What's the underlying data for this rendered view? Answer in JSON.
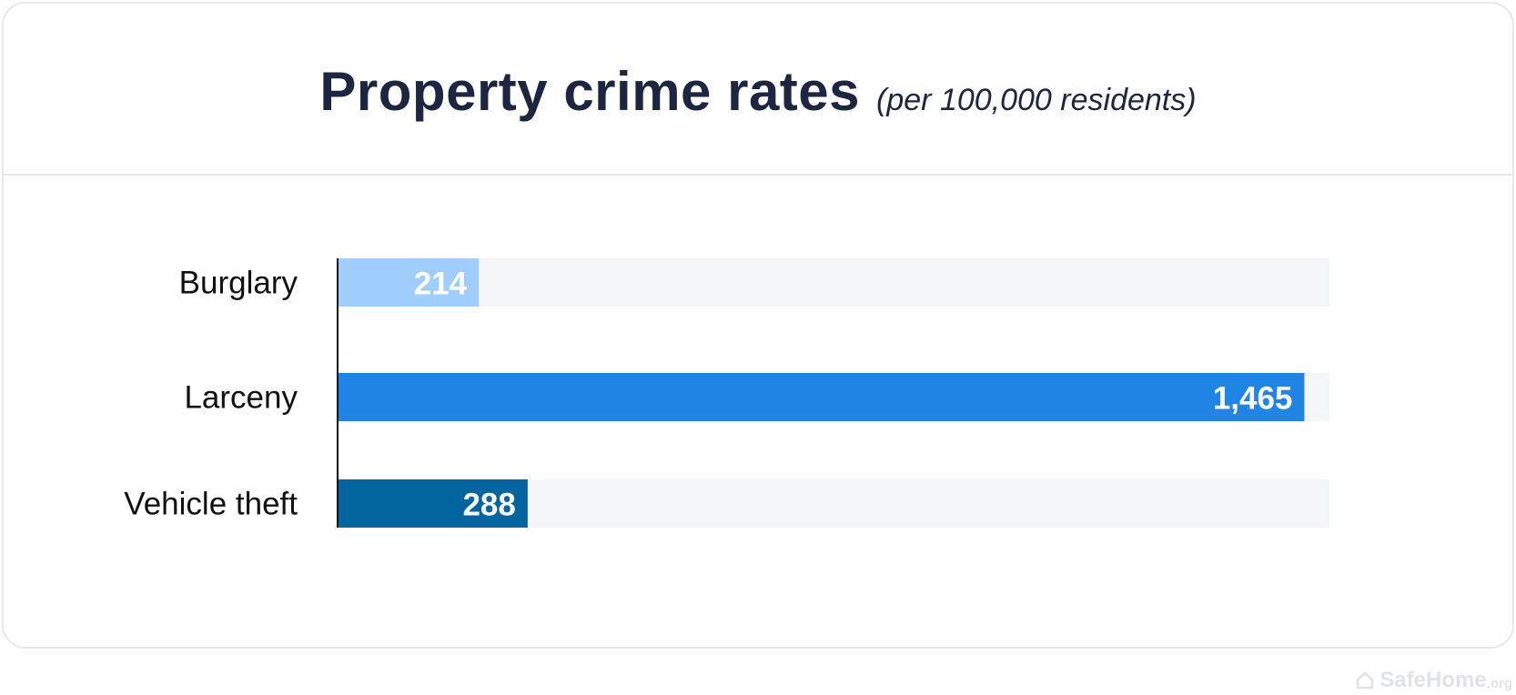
{
  "chart_data": {
    "type": "bar",
    "orientation": "horizontal",
    "title": "Property crime rates",
    "subtitle": "(per 100,000 residents)",
    "categories": [
      "Burglary",
      "Larceny",
      "Vehicle theft"
    ],
    "values": [
      214,
      1465,
      288
    ],
    "value_labels": [
      "214",
      "1,465",
      "288"
    ],
    "xlim": [
      0,
      1503
    ],
    "colors": [
      "#9fcdfd",
      "#2084e4",
      "#02659f"
    ],
    "track_color": "#f3f6f7",
    "axis_color": "#111111",
    "grid": false,
    "legend": "none"
  },
  "watermark": {
    "name": "SafeHome",
    "suffix": ".org",
    "icon": "house-icon"
  }
}
